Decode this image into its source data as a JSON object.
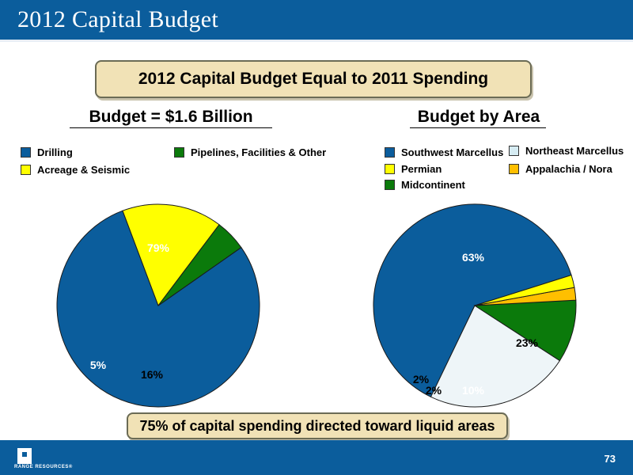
{
  "slide": {
    "title": "2012 Capital Budget",
    "headline": "2012 Capital Budget Equal to 2011 Spending",
    "footer_note": "75% of capital spending directed toward liquid areas",
    "page_number": "73",
    "logo_text": "RANGE RESOURCES®"
  },
  "colors": {
    "blue": "#0b5d9c",
    "yellow": "#ffff00",
    "green": "#0b7a0b",
    "light_blue": "#eef5f8",
    "orange": "#ffbf00"
  },
  "chart_data": [
    {
      "type": "pie",
      "title": "Budget = $1.6 Billion",
      "legend": [
        {
          "label": "Drilling",
          "color": "#0b5d9c"
        },
        {
          "label": "Pipelines, Facilities & Other",
          "color": "#0b7a0b"
        },
        {
          "label": "Acreage & Seismic",
          "color": "#ffff00"
        }
      ],
      "slices": [
        {
          "label": "Drilling",
          "value": 79,
          "display": "79%",
          "color": "#0b5d9c"
        },
        {
          "label": "Acreage & Seismic",
          "value": 16,
          "display": "16%",
          "color": "#ffff00"
        },
        {
          "label": "Pipelines, Facilities & Other",
          "value": 5,
          "display": "5%",
          "color": "#0b7a0b"
        }
      ]
    },
    {
      "type": "pie",
      "title": "Budget by Area",
      "legend": [
        {
          "label": "Southwest Marcellus",
          "color": "#0b5d9c"
        },
        {
          "label": "Northeast Marcellus",
          "color": "#eef5f8"
        },
        {
          "label": "Permian",
          "color": "#ffff00"
        },
        {
          "label": "Appalachia / Nora",
          "color": "#ffbf00"
        },
        {
          "label": "Midcontinent",
          "color": "#0b7a0b"
        }
      ],
      "slices": [
        {
          "label": "Southwest Marcellus",
          "value": 63,
          "display": "63%",
          "color": "#0b5d9c"
        },
        {
          "label": "Northeast Marcellus",
          "value": 23,
          "display": "23%",
          "color": "#eef5f8"
        },
        {
          "label": "Midcontinent",
          "value": 10,
          "display": "10%",
          "color": "#0b7a0b"
        },
        {
          "label": "Appalachia / Nora",
          "value": 2,
          "display": "2%",
          "color": "#ffbf00"
        },
        {
          "label": "Permian",
          "value": 2,
          "display": "2%",
          "color": "#ffff00"
        }
      ]
    }
  ]
}
